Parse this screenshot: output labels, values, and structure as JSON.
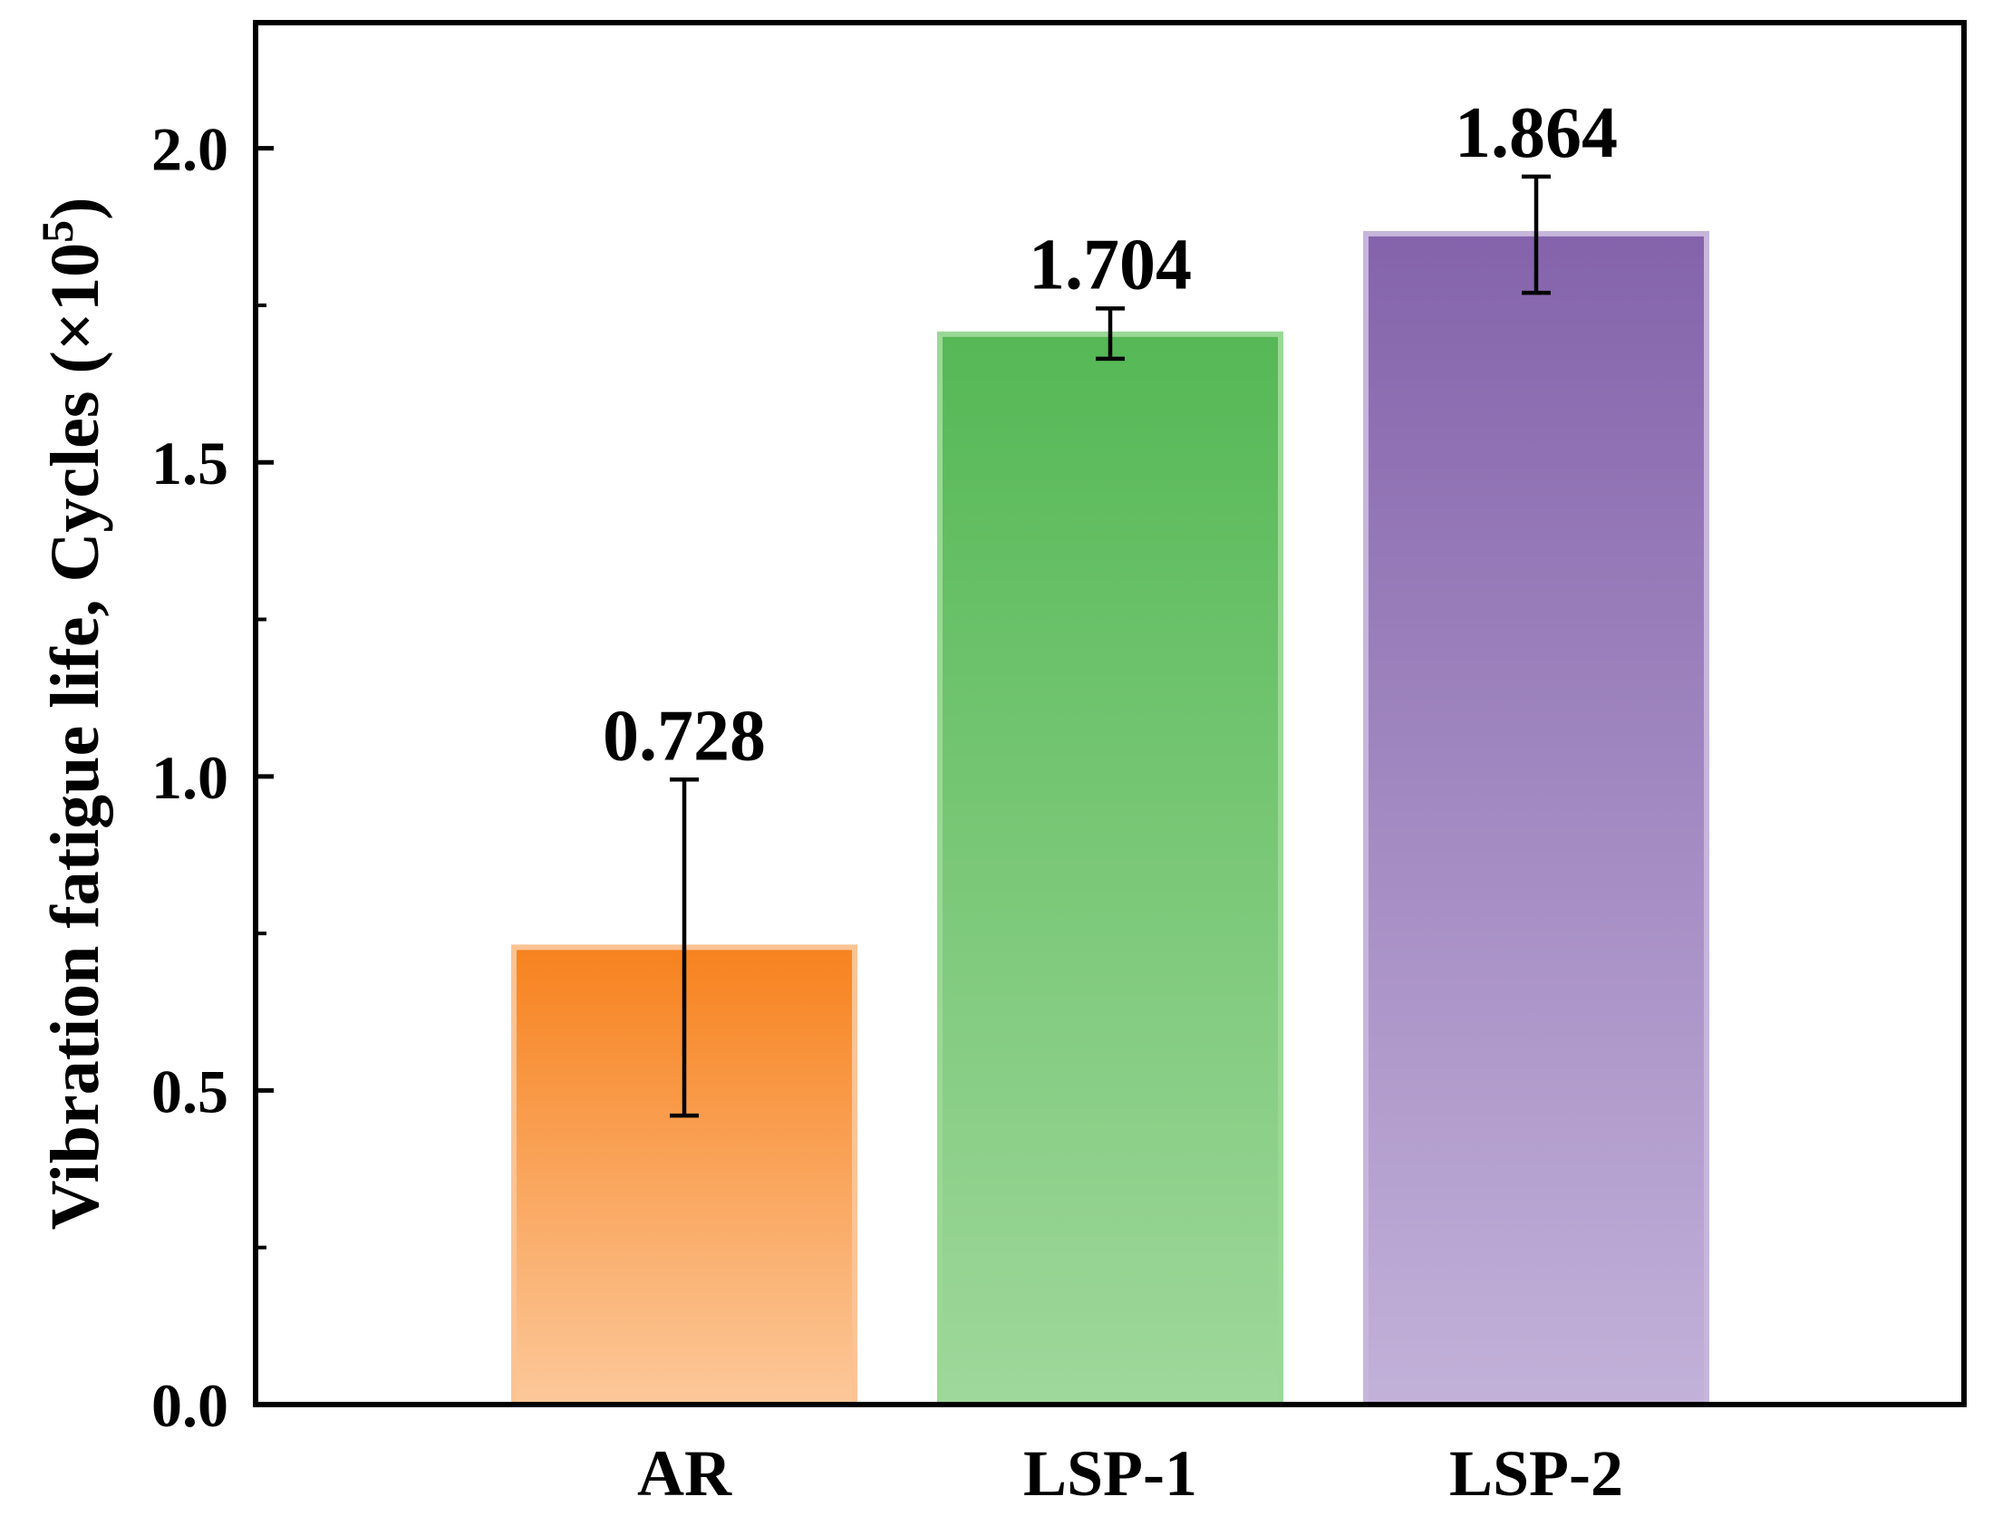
{
  "chart_data": {
    "type": "bar",
    "categories": [
      "AR",
      "LSP-1",
      "LSP-2"
    ],
    "values": [
      0.728,
      1.704,
      1.864
    ],
    "error_low": [
      0.46,
      1.665,
      1.77
    ],
    "error_high": [
      0.995,
      1.745,
      1.955
    ],
    "data_labels": [
      "0.728",
      "1.704",
      "1.864"
    ],
    "ylabel": "Vibration fatigue life, Cycles (×10",
    "ylabel_exponent": "5",
    "ylabel_close": ")",
    "ylim": [
      0,
      2.2
    ],
    "yticks": [
      0.0,
      0.5,
      1.0,
      1.5,
      2.0
    ],
    "ytick_labels": [
      "0.0",
      "0.5",
      "1.0",
      "1.5",
      "2.0"
    ],
    "yminor_ticks": [
      0.25,
      0.75,
      1.25,
      1.75
    ],
    "grid": false,
    "colors": {
      "AR": {
        "top": "#f7821e",
        "bottom": "#fcc89a",
        "border": "#fbc394"
      },
      "LSP-1": {
        "top": "#55b855",
        "bottom": "#9fd89b",
        "border": "#9ad896"
      },
      "LSP-2": {
        "top": "#8463ab",
        "bottom": "#c2b1d9",
        "border": "#c6b6dc"
      }
    }
  }
}
